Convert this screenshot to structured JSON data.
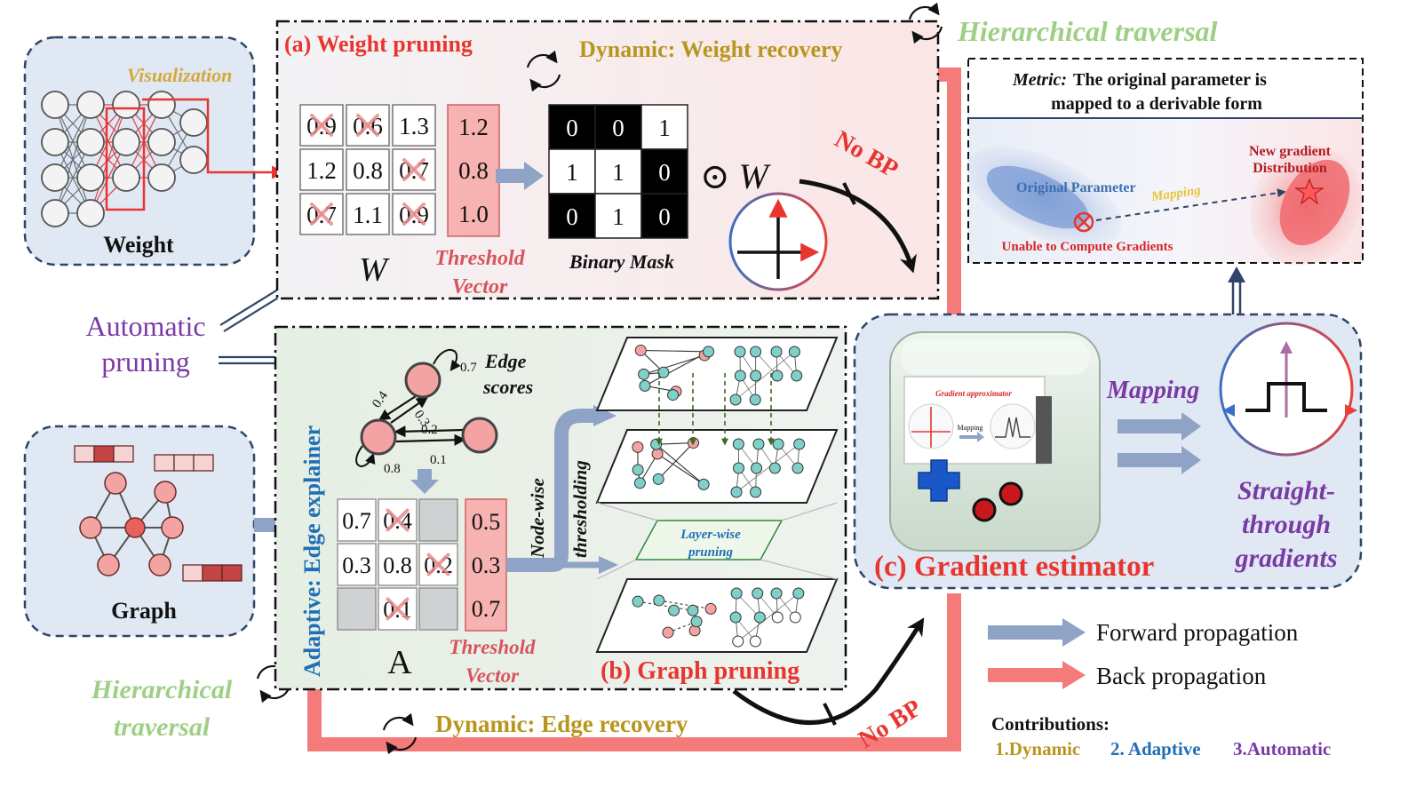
{
  "colors": {
    "red": "#e8352f",
    "backprop": "#f57b7b",
    "forward": "#8fa3c6",
    "gold": "#b8961e",
    "green_text": "#9fcf85",
    "purple": "#7a3aa3",
    "blue": "#1f6fb5",
    "panel_blue": "#dfe8f3",
    "navy": "#2f4468"
  },
  "weight_panel": {
    "label": "Weight",
    "visualization": "Visualization"
  },
  "graph_panel": {
    "label": "Graph"
  },
  "automatic_label": [
    "Automatic",
    "pruning"
  ],
  "weight_pruning": {
    "title": "(a) Weight pruning",
    "dynamic": "Dynamic: Weight recovery",
    "matrix_label": "W",
    "matrix": [
      [
        "0.9",
        "0.6",
        "1.3"
      ],
      [
        "1.2",
        "0.8",
        "0.7"
      ],
      [
        "0.7",
        "1.1",
        "0.9"
      ]
    ],
    "pruned": [
      [
        true,
        true,
        false
      ],
      [
        false,
        false,
        true
      ],
      [
        true,
        false,
        true
      ]
    ],
    "threshold": [
      "1.2",
      "0.8",
      "1.0"
    ],
    "threshold_label": [
      "Threshold",
      "Vector"
    ],
    "mask": [
      [
        "0",
        "0",
        "1"
      ],
      [
        "1",
        "1",
        "0"
      ],
      [
        "0",
        "1",
        "0"
      ]
    ],
    "mask_label": "Binary Mask",
    "odot_w": "⊙ W",
    "no_bp": "No BP"
  },
  "hierarchical_top": "Hierarchical traversal",
  "hierarchical_bottom": [
    "Hierarchical",
    "traversal"
  ],
  "metric": {
    "label": "Metric:",
    "text_line1": "The original parameter is",
    "text_line2": "mapped to a derivable form",
    "original": "Original Parameter",
    "mapping": "Mapping",
    "unable": "Unable to Compute Gradients",
    "new_dist": [
      "New gradient",
      "Distribution"
    ]
  },
  "graph_pruning": {
    "side_label": "Adaptive: Edge explainer",
    "edge_scores": [
      "Edge",
      "scores"
    ],
    "edge_weights": [
      "0.7",
      "0.4",
      "0.3",
      "0.2",
      "0.8",
      "0.1"
    ],
    "matrix_label": "A",
    "matrix": [
      [
        "0.7",
        "0.4",
        ""
      ],
      [
        "0.3",
        "0.8",
        "0.2"
      ],
      [
        "",
        "0.1",
        ""
      ]
    ],
    "pruned": [
      [
        false,
        true,
        false
      ],
      [
        false,
        false,
        true
      ],
      [
        false,
        true,
        false
      ]
    ],
    "threshold": [
      "0.5",
      "0.3",
      "0.7"
    ],
    "threshold_label": [
      "Threshold",
      "Vector"
    ],
    "nodewise": [
      "Node-wise",
      "thresholding"
    ],
    "layerwise": [
      "Layer-wise",
      "pruning"
    ],
    "title": "(b) Graph pruning",
    "dynamic": "Dynamic: Edge recovery",
    "no_bp": "No BP"
  },
  "gradient_estimator": {
    "title": "(c) Gradient estimator",
    "screen_title": "Gradient approximator",
    "screen_mapping": "Mapping",
    "mapping": "Mapping",
    "ste": [
      "Straight-",
      "through",
      "gradients"
    ]
  },
  "legend": {
    "forward": "Forward propagation",
    "back": "Back propagation"
  },
  "contributions": {
    "title": "Contributions:",
    "dynamic": "1.Dynamic",
    "adaptive": "2. Adaptive",
    "automatic": "3.Automatic"
  }
}
